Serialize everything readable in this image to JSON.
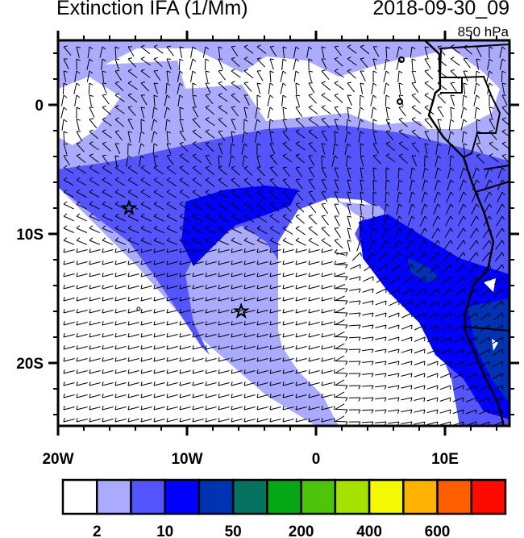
{
  "header": {
    "title": "Extinction IFA (1/Mm)",
    "datetime": "2018-09-30_09",
    "level": "850 hPa"
  },
  "map": {
    "lon_range": [
      -20,
      15
    ],
    "lat_range": [
      -25,
      5
    ],
    "lon_labels": [
      {
        "lon": -20,
        "label": "20W"
      },
      {
        "lon": -10,
        "label": "10W"
      },
      {
        "lon": 0,
        "label": "0"
      },
      {
        "lon": 10,
        "label": "10E"
      }
    ],
    "lat_labels": [
      {
        "lat": 0,
        "label": "0"
      },
      {
        "lat": -10,
        "label": "10S"
      },
      {
        "lat": -20,
        "label": "20S"
      }
    ],
    "markers": [
      {
        "type": "star",
        "lon": -14.5,
        "lat": -8
      },
      {
        "type": "star",
        "lon": -5.8,
        "lat": -16
      }
    ],
    "overlay": "wind barbs"
  },
  "colorbar": {
    "colors": [
      "#ffffff",
      "#aaaaff",
      "#5555ff",
      "#0000ff",
      "#0033b3",
      "#05735f",
      "#05a814",
      "#4cc50a",
      "#a6e200",
      "#f4f800",
      "#ffb300",
      "#ff5e00",
      "#ff0a00"
    ],
    "labels": [
      {
        "after_box": 1,
        "label": "2"
      },
      {
        "after_box": 3,
        "label": "10"
      },
      {
        "after_box": 5,
        "label": "50"
      },
      {
        "after_box": 7,
        "label": "200"
      },
      {
        "after_box": 9,
        "label": "400"
      },
      {
        "after_box": 11,
        "label": "600"
      }
    ]
  }
}
